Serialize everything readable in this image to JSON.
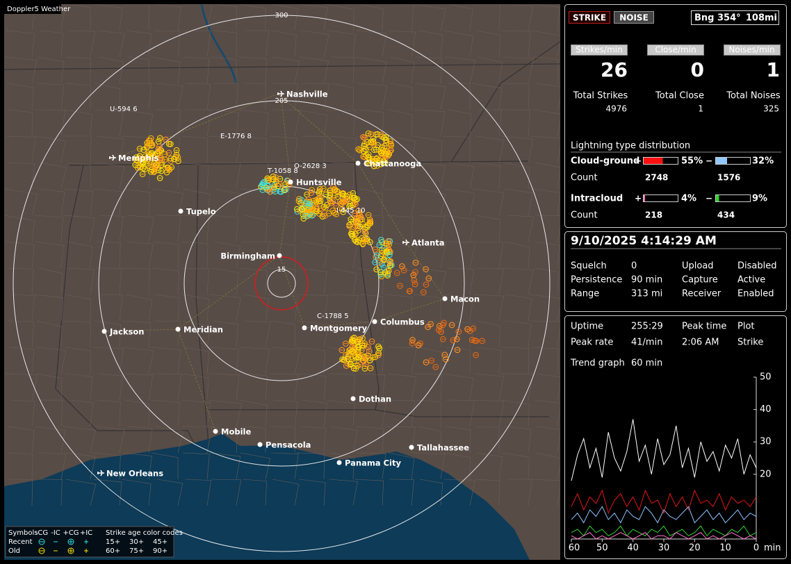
{
  "header": {
    "title": "Doppler5 Weather"
  },
  "map": {
    "range_rings": [
      "300",
      "205",
      "15"
    ],
    "cities": [
      "Nashville",
      "Memphis",
      "Chattanooga",
      "Huntsville",
      "Tupelo",
      "Atlanta",
      "Birmingham",
      "Macon",
      "Columbus",
      "Montgomery",
      "Jackson",
      "Meridian",
      "Dothan",
      "Mobile",
      "Pensacola",
      "Tallahassee",
      "Panama City",
      "New Orleans"
    ],
    "storms": [
      "U-594 6",
      "E-1776 8",
      "T-1058 8",
      "O-2628 3",
      "I-445 10",
      "C-1788 5"
    ]
  },
  "legend": {
    "symbols": "Symbols",
    "types": [
      "-CG",
      "-IC",
      "+CG",
      "+IC"
    ],
    "age_title": "Strike age color codes",
    "rows": [
      "Recent",
      "Old"
    ],
    "recent_ages": [
      "15+",
      "30+",
      "45+"
    ],
    "old_ages": [
      "60+",
      "75+",
      "90+"
    ]
  },
  "status": {
    "strike_button": "STRIKE",
    "noise_button": "NOISE",
    "bearing": "Bng 354°",
    "distance": "108mi",
    "rates": [
      {
        "label": "Strikes/min",
        "value": 26
      },
      {
        "label": "Close/min",
        "value": 0
      },
      {
        "label": "Noises/min",
        "value": 1
      }
    ],
    "totals": [
      {
        "label": "Total Strikes",
        "value": 4976
      },
      {
        "label": "Total Close",
        "value": 1
      },
      {
        "label": "Total Noises",
        "value": 325
      }
    ],
    "distribution": {
      "title": "Lightning type distribution",
      "count_label": "Count",
      "pos_sign": "+",
      "neg_sign": "−",
      "rows": [
        {
          "name": "Cloud-ground",
          "pos": {
            "value": 55,
            "label": "55%"
          },
          "neg": {
            "value": 32,
            "label": "32%"
          },
          "pos_count": 2748,
          "neg_count": 1576
        },
        {
          "name": "Intracloud",
          "pos": {
            "value": 4,
            "label": "4%"
          },
          "neg": {
            "value": 9,
            "label": "9%"
          },
          "pos_count": 218,
          "neg_count": 434
        }
      ]
    }
  },
  "info": {
    "datetime": "9/10/2025 4:14:29 AM",
    "settings": [
      {
        "label": "Squelch",
        "value": 0
      },
      {
        "label": "Persistence",
        "value": "90 min"
      },
      {
        "label": "Range",
        "value": "313 mi"
      },
      {
        "label": "Upload",
        "value": "Disabled"
      },
      {
        "label": "Capture",
        "value": "Active"
      },
      {
        "label": "Receiver",
        "value": "Enabled"
      }
    ],
    "stats": [
      {
        "label": "Uptime",
        "value": "255:29"
      },
      {
        "label": "Peak rate",
        "value": "41/min"
      },
      {
        "label": "Peak time",
        "value": "2:06 AM"
      },
      {
        "label": "Plot",
        "value": "Strike"
      }
    ]
  },
  "trend": {
    "label": "Trend graph",
    "span": "60 min",
    "x_unit": "min",
    "xlim": [
      60,
      0
    ],
    "ylim": [
      0,
      50
    ],
    "xticks": [
      60,
      50,
      40,
      30,
      20,
      10,
      0
    ],
    "yticks": [
      20,
      30,
      40,
      50
    ],
    "x": [
      60,
      58,
      56,
      54,
      52,
      50,
      48,
      46,
      44,
      42,
      40,
      38,
      36,
      34,
      32,
      30,
      28,
      26,
      24,
      22,
      20,
      18,
      16,
      14,
      12,
      10,
      8,
      6,
      4,
      2,
      0
    ],
    "series": [
      {
        "color": "#ffffff",
        "values": [
          18,
          26,
          31,
          22,
          28,
          19,
          33,
          25,
          21,
          27,
          37,
          24,
          29,
          20,
          31,
          23,
          26,
          35,
          22,
          28,
          19,
          30,
          24,
          27,
          21,
          29,
          25,
          31,
          20,
          26,
          22
        ]
      },
      {
        "color": "#e01818",
        "values": [
          10,
          14,
          9,
          13,
          11,
          15,
          8,
          12,
          14,
          10,
          13,
          9,
          15,
          11,
          12,
          8,
          14,
          10,
          13,
          9,
          15,
          11,
          12,
          10,
          14,
          9,
          13,
          11,
          12,
          10,
          13
        ]
      },
      {
        "color": "#8fc4ff",
        "values": [
          6,
          8,
          5,
          9,
          7,
          10,
          6,
          8,
          5,
          9,
          7,
          6,
          10,
          8,
          5,
          9,
          7,
          6,
          8,
          10,
          5,
          7,
          9,
          6,
          8,
          5,
          7,
          9,
          6,
          8,
          7
        ]
      },
      {
        "color": "#30d030",
        "values": [
          2,
          3,
          1,
          4,
          2,
          3,
          1,
          2,
          4,
          1,
          3,
          2,
          1,
          3,
          2,
          4,
          1,
          2,
          3,
          1,
          2,
          4,
          1,
          3,
          2,
          1,
          3,
          2,
          4,
          1,
          2
        ]
      },
      {
        "color": "#ff70d0",
        "values": [
          1,
          0,
          1,
          2,
          0,
          1,
          0,
          1,
          2,
          1,
          0,
          1,
          2,
          0,
          1,
          1,
          0,
          2,
          1,
          0,
          1,
          2,
          0,
          1,
          0,
          1,
          2,
          1,
          0,
          1,
          0
        ]
      }
    ]
  }
}
